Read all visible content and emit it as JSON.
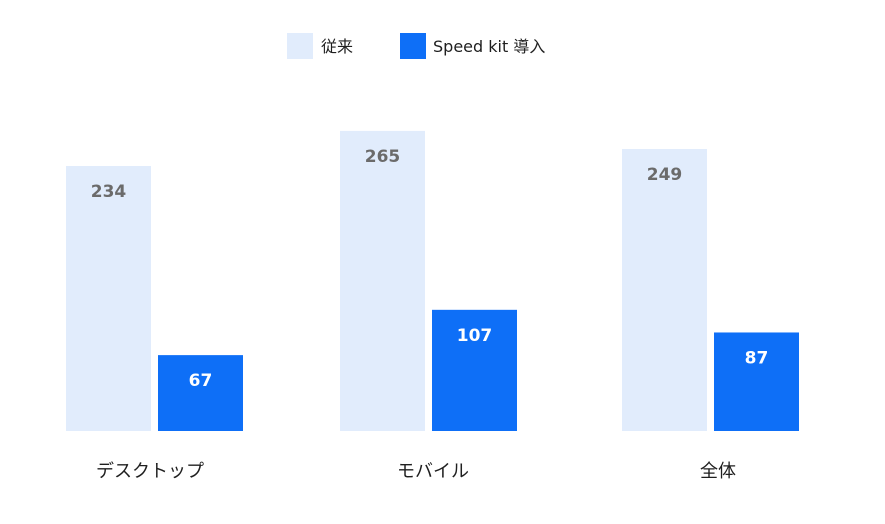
{
  "chart_data": {
    "type": "bar",
    "title": "",
    "xlabel": "",
    "ylabel": "",
    "ylim": [
      0,
      300
    ],
    "grid": false,
    "legend_placement": "top-center",
    "categories": [
      "デスクトップ",
      "モバイル",
      "全体"
    ],
    "series": [
      {
        "name": "従来",
        "values": [
          234,
          265,
          249
        ],
        "color": "#e1ecfc",
        "label_color": "#6b6b6b"
      },
      {
        "name": "Speed kit 導入",
        "values": [
          67,
          107,
          87
        ],
        "color": "#0e6ff7",
        "label_color": "#ffffff"
      }
    ]
  }
}
